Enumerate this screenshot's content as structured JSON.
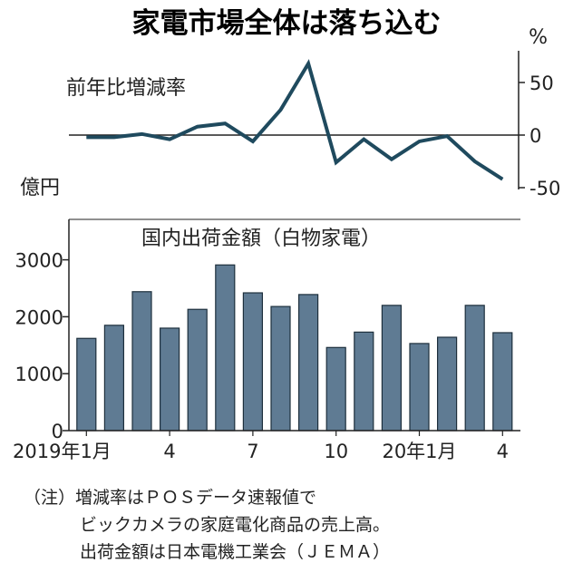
{
  "title": "家電市場全体は落ち込む",
  "chart_data": [
    {
      "type": "line",
      "label": "前年比増減率",
      "unit": "%",
      "y_axis_side": "right",
      "ylim": [
        -50,
        75
      ],
      "yticks": [
        50,
        0,
        -50
      ],
      "ytick_labels": [
        "50",
        "0",
        "-50"
      ],
      "x": [
        "2019-01",
        "2019-02",
        "2019-03",
        "2019-04",
        "2019-05",
        "2019-06",
        "2019-07",
        "2019-08",
        "2019-09",
        "2019-10",
        "2019-11",
        "2019-12",
        "2020-01",
        "2020-02",
        "2020-03",
        "2020-04"
      ],
      "values": [
        -2,
        -2,
        1,
        -4,
        8,
        11,
        -6,
        24,
        68,
        -26,
        -4,
        -23,
        -6,
        -1,
        -25,
        -42
      ],
      "line_color": "#1f4a5e"
    },
    {
      "type": "bar",
      "label": "国内出荷金額（白物家電）",
      "unit": "億円",
      "ylim": [
        0,
        3700
      ],
      "yticks": [
        0,
        1000,
        2000,
        3000
      ],
      "ytick_labels": [
        "0",
        "1000",
        "2000",
        "3000"
      ],
      "categories": [
        "2019-01",
        "2019-02",
        "2019-03",
        "2019-04",
        "2019-05",
        "2019-06",
        "2019-07",
        "2019-08",
        "2019-09",
        "2019-10",
        "2019-11",
        "2019-12",
        "2020-01",
        "2020-02",
        "2020-03",
        "2020-04"
      ],
      "x_tick_labels": [
        "2019年1月",
        "",
        "",
        "4",
        "",
        "",
        "7",
        "",
        "",
        "10",
        "",
        "",
        "20年1月",
        "",
        "",
        "4"
      ],
      "values": [
        1620,
        1850,
        2440,
        1800,
        2130,
        2910,
        2420,
        2180,
        2390,
        1460,
        1730,
        2200,
        1530,
        1640,
        2200,
        1720
      ],
      "bar_color": "#5f7b93",
      "bar_edge": "#1d2f3c"
    }
  ],
  "notes": [
    "（注）増減率はＰＯＳデータ速報値で",
    "ビックカメラの家庭電化商品の売上高。",
    "出荷金額は日本電機工業会（ＪＥＭＡ）"
  ]
}
